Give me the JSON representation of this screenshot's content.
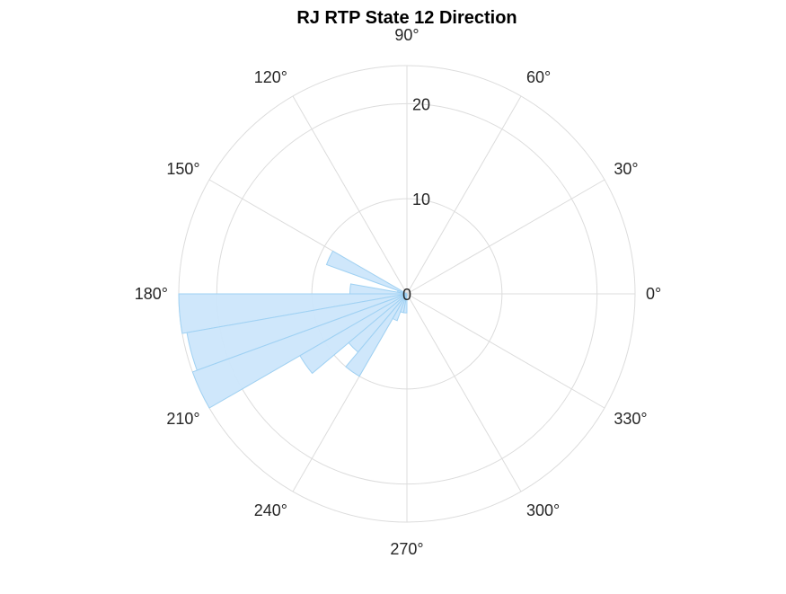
{
  "chart_data": {
    "type": "polar-histogram",
    "title": "RJ  RTP State 12 Direction",
    "rlim": [
      0,
      24
    ],
    "r_ticks": [
      0,
      10,
      20
    ],
    "theta_ticks": [
      0,
      30,
      60,
      90,
      120,
      150,
      180,
      210,
      240,
      270,
      300,
      330
    ],
    "theta_tick_labels": [
      "0°",
      "30°",
      "60°",
      "90°",
      "120°",
      "150°",
      "180°",
      "210°",
      "240°",
      "270°",
      "300°",
      "330°"
    ],
    "grid": true,
    "bin_width_deg": 10,
    "bins": [
      {
        "start": 150,
        "end": 160,
        "value": 9
      },
      {
        "start": 160,
        "end": 170,
        "value": 1
      },
      {
        "start": 170,
        "end": 180,
        "value": 6
      },
      {
        "start": 180,
        "end": 190,
        "value": 24
      },
      {
        "start": 190,
        "end": 200,
        "value": 23.5
      },
      {
        "start": 200,
        "end": 210,
        "value": 24
      },
      {
        "start": 210,
        "end": 220,
        "value": 13
      },
      {
        "start": 220,
        "end": 230,
        "value": 8
      },
      {
        "start": 230,
        "end": 240,
        "value": 10
      },
      {
        "start": 240,
        "end": 250,
        "value": 3
      },
      {
        "start": 250,
        "end": 260,
        "value": 2
      },
      {
        "start": 260,
        "end": 270,
        "value": 2
      }
    ],
    "colors": {
      "fill": "#cce6fb",
      "edge": "#9fd1f3",
      "grid": "#dcdcdc",
      "text": "#262626"
    }
  }
}
